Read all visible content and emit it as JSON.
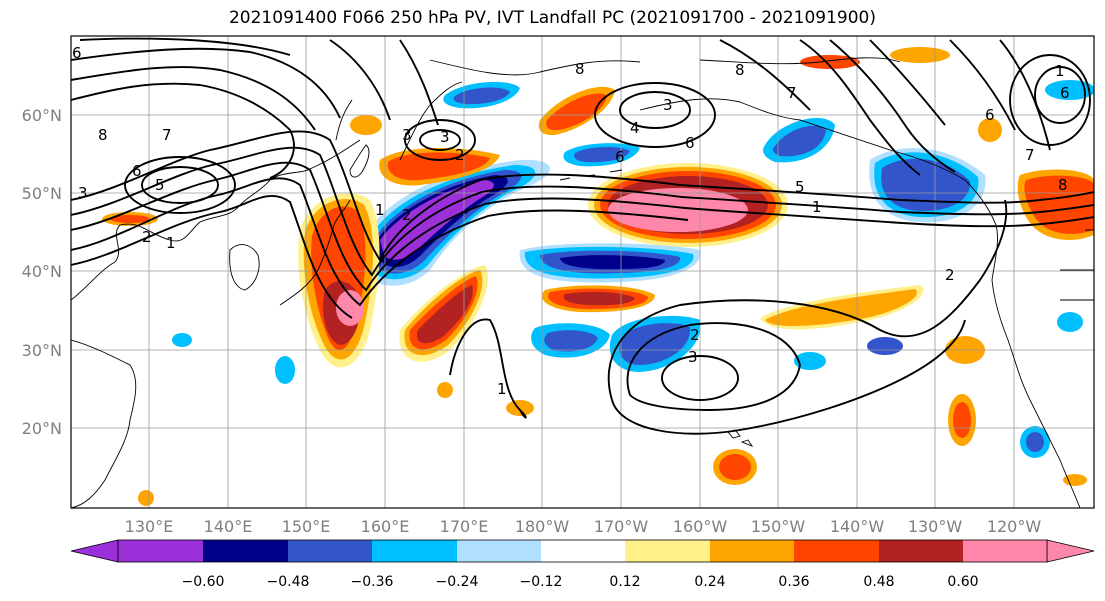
{
  "title": "2021091400 F066 250 hPa PV, IVT Landfall PC (2021091700 - 2021091900)",
  "lat_labels": [
    "60°N",
    "50°N",
    "40°N",
    "30°N",
    "20°N"
  ],
  "lon_labels": [
    "130°E",
    "140°E",
    "150°E",
    "160°E",
    "170°E",
    "180°W",
    "170°W",
    "160°W",
    "150°W",
    "140°W",
    "130°W",
    "120°W"
  ],
  "colorbar": {
    "colors": [
      "#9b30d9",
      "#00008b",
      "#3355cc",
      "#00bfff",
      "#b0e0ff",
      "#ffffff",
      "#fff08a",
      "#ffa500",
      "#ff4500",
      "#b22222",
      "#ff88aa"
    ],
    "tick_labels": [
      "−0.60",
      "−0.48",
      "−0.36",
      "−0.24",
      "−0.12",
      "0.12",
      "0.24",
      "0.36",
      "0.48",
      "0.60"
    ]
  },
  "contour_labels": [
    "8",
    "7",
    "6",
    "5",
    "3",
    "2",
    "1",
    "3",
    "2",
    "1",
    "8",
    "3",
    "2",
    "3",
    "4",
    "6",
    "5",
    "1",
    "6",
    "8",
    "7",
    "6",
    "2",
    "1",
    "2",
    "3",
    "1",
    "6",
    "7",
    "8",
    "6"
  ]
}
